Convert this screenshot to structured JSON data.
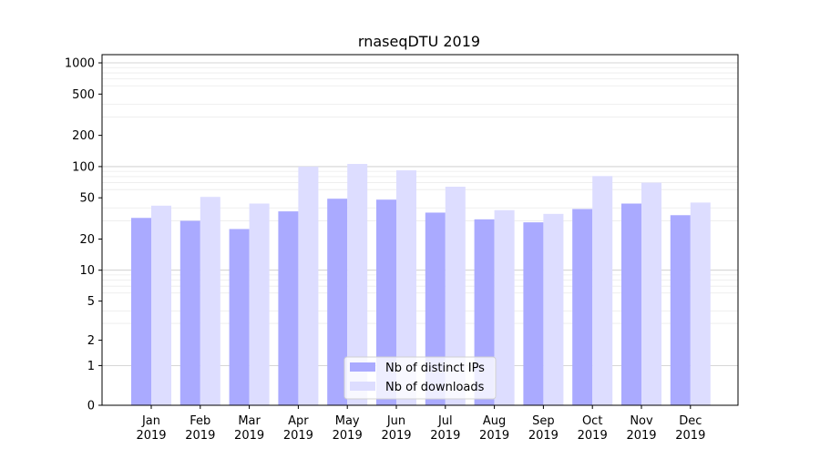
{
  "chart_data": {
    "type": "bar",
    "title": "rnaseqDTU 2019",
    "xlabel": "",
    "ylabel": "",
    "y_scale": "symlog",
    "ylim": [
      0,
      1200
    ],
    "grid": "horizontal",
    "legend_position": "bottom-center",
    "categories": [
      "Jan\n2019",
      "Feb\n2019",
      "Mar\n2019",
      "Apr\n2019",
      "May\n2019",
      "Jun\n2019",
      "Jul\n2019",
      "Aug\n2019",
      "Sep\n2019",
      "Oct\n2019",
      "Nov\n2019",
      "Dec\n2019"
    ],
    "yticks": [
      {
        "value": 0,
        "label": "0"
      },
      {
        "value": 1,
        "label": "1"
      },
      {
        "value": 2,
        "label": "2"
      },
      {
        "value": 5,
        "label": "5"
      },
      {
        "value": 10,
        "label": "10"
      },
      {
        "value": 20,
        "label": "20"
      },
      {
        "value": 50,
        "label": "50"
      },
      {
        "value": 100,
        "label": "100"
      },
      {
        "value": 200,
        "label": "200"
      },
      {
        "value": 500,
        "label": "500"
      },
      {
        "value": 1000,
        "label": "1000"
      }
    ],
    "series": [
      {
        "name": "Nb of distinct IPs",
        "color": "#aaaaff",
        "values": [
          32,
          30,
          25,
          37,
          49,
          48,
          36,
          31,
          29,
          39,
          44,
          34
        ]
      },
      {
        "name": "Nb of downloads",
        "color": "#ddddff",
        "values": [
          42,
          51,
          44,
          100,
          106,
          92,
          64,
          38,
          35,
          81,
          70,
          45
        ]
      }
    ]
  }
}
